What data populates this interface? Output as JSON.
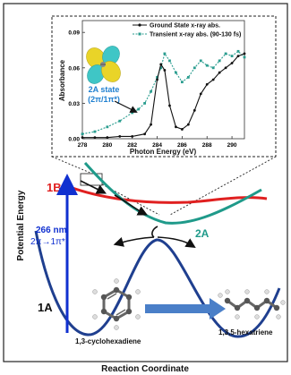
{
  "inset": {
    "legend": {
      "ground": "Ground State x-ray abs.",
      "transient": "Transient x-ray abs. (90-130 fs)"
    },
    "ylabel": "Absorbance",
    "xlabel": "Photon Energy (eV)",
    "yticks": [
      "0.09",
      "0.06",
      "0.03",
      "0.00"
    ],
    "xticks": [
      "278",
      "280",
      "282",
      "284",
      "286",
      "288",
      "290"
    ],
    "state_label_line1": "2A state",
    "state_label_line2": "(2π/1π*)"
  },
  "diagram": {
    "ylabel": "Potential Energy",
    "xlabel": "Reaction Coordinate",
    "state_1B": "1B",
    "state_2A": "2A",
    "state_1A": "1A",
    "excitation_nm": "266 nm",
    "excitation_transition": "2π→1π*",
    "reactant": "1,3-cyclohexadiene",
    "product": "1,3,5-hexatriene"
  },
  "colors": {
    "ground": "#111111",
    "transient": "#2a9d8f",
    "curve_1B": "#e02020",
    "curve_2A": "#1f9a8a",
    "curve_1A": "#1f3f8f",
    "excitation_arrow": "#1030d0",
    "reaction_arrow": "#4a7fc8"
  },
  "chart_data": {
    "type": "line",
    "xlabel": "Photon Energy (eV)",
    "ylabel": "Absorbance",
    "xlim": [
      278,
      291
    ],
    "ylim": [
      0,
      0.1
    ],
    "series": [
      {
        "name": "Ground State x-ray abs.",
        "x": [
          278,
          279,
          280,
          281,
          282,
          283,
          283.5,
          284,
          284.3,
          284.6,
          285,
          285.5,
          286,
          286.5,
          287,
          287.5,
          288,
          288.5,
          289,
          289.5,
          290,
          290.5,
          291
        ],
        "y": [
          0.001,
          0.001,
          0.001,
          0.002,
          0.002,
          0.004,
          0.012,
          0.05,
          0.063,
          0.058,
          0.028,
          0.01,
          0.008,
          0.012,
          0.024,
          0.038,
          0.046,
          0.05,
          0.056,
          0.06,
          0.064,
          0.07,
          0.072
        ]
      },
      {
        "name": "Transient x-ray abs. (90-130 fs)",
        "x": [
          278,
          279,
          280,
          281,
          282,
          282.5,
          283,
          283.5,
          284,
          284.3,
          284.6,
          285,
          285.5,
          286,
          286.5,
          287,
          287.5,
          288,
          288.5,
          289,
          289.5,
          290,
          290.5,
          291
        ],
        "y": [
          0.004,
          0.006,
          0.01,
          0.015,
          0.022,
          0.025,
          0.03,
          0.04,
          0.052,
          0.06,
          0.072,
          0.066,
          0.056,
          0.048,
          0.052,
          0.06,
          0.066,
          0.062,
          0.06,
          0.066,
          0.072,
          0.07,
          0.074,
          0.069
        ]
      }
    ]
  }
}
